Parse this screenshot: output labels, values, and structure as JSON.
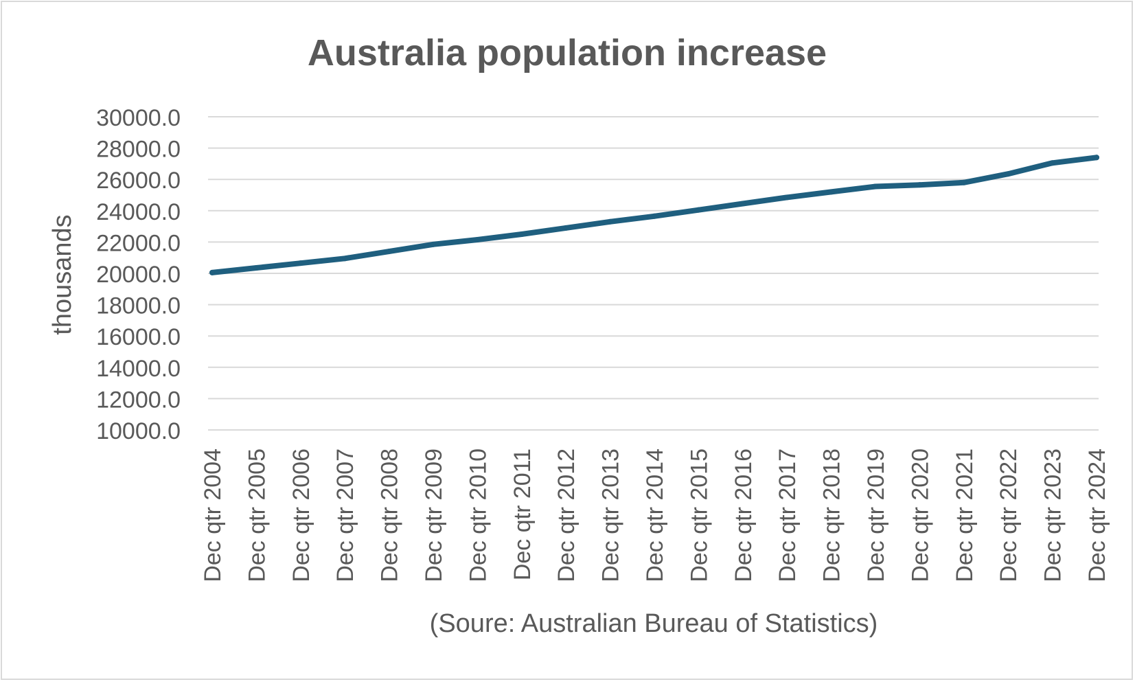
{
  "chart_data": {
    "type": "line",
    "title": "Australia population increase",
    "ylabel": "thousands",
    "xlabel": "(Soure: Australian Bureau of Statistics)",
    "ylim": [
      10000,
      30000
    ],
    "y_ticks": [
      "10000.0",
      "12000.0",
      "14000.0",
      "16000.0",
      "18000.0",
      "20000.0",
      "22000.0",
      "24000.0",
      "26000.0",
      "28000.0",
      "30000.0"
    ],
    "categories": [
      "Dec qtr 2004",
      "Dec qtr 2005",
      "Dec qtr 2006",
      "Dec qtr 2007",
      "Dec qtr 2008",
      "Dec qtr 2009",
      "Dec qtr 2010",
      "Dec qtr 2011",
      "Dec qtr 2012",
      "Dec qtr 2013",
      "Dec qtr 2014",
      "Dec qtr 2015",
      "Dec qtr 2016",
      "Dec qtr 2017",
      "Dec qtr 2018",
      "Dec qtr 2019",
      "Dec qtr 2020",
      "Dec qtr 2021",
      "Dec qtr 2022",
      "Dec qtr 2023",
      "Dec qtr 2024"
    ],
    "series": [
      {
        "values": [
          20050,
          20350,
          20650,
          20950,
          21400,
          21850,
          22150,
          22500,
          22900,
          23300,
          23650,
          24050,
          24450,
          24850,
          25200,
          25550,
          25650,
          25800,
          26350,
          27050,
          27400
        ]
      }
    ],
    "grid": true,
    "legend": "none",
    "line_color": "#1f5f7f",
    "grid_color": "#d9d9d9",
    "text_color": "#595959"
  }
}
